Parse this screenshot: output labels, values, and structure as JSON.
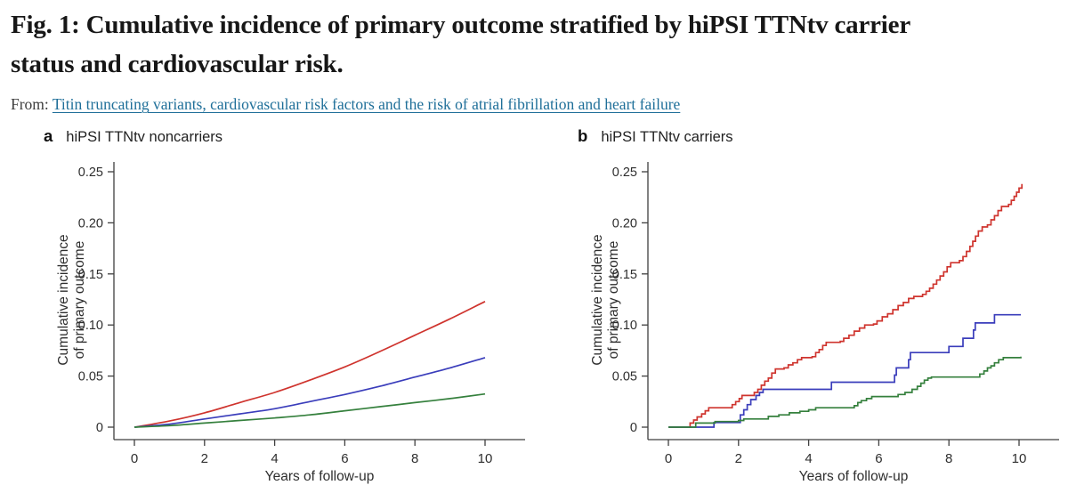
{
  "header": {
    "title_lines": [
      "Fig. 1: Cumulative incidence of primary outcome stratified by hiPSI TTNtv carrier",
      "status and cardiovascular risk."
    ],
    "from_label": "From:",
    "link_text": "Titin truncating variants, cardiovascular risk factors and the risk of atrial fibrillation and heart failure"
  },
  "colors": {
    "red": "#cf342e",
    "blue": "#3a3dbb",
    "green": "#35803d",
    "link": "#1f6f99",
    "axis": "#3f3f3f",
    "tick_text": "#2e2e2e"
  },
  "chart_data": [
    {
      "type": "line",
      "panel_label": "a",
      "title": "hiPSI TTNtv noncarriers",
      "xlabel": "Years of follow-up",
      "ylabel_lines": [
        "Cumulative incidence",
        "of primary outcome"
      ],
      "xlim": [
        0,
        10
      ],
      "ylim": [
        0,
        0.25
      ],
      "grid": false,
      "legend": "none",
      "xticks": {
        "values": [
          0,
          2,
          4,
          6,
          8,
          10
        ],
        "labels": [
          "0",
          "2",
          "4",
          "6",
          "8",
          "10"
        ]
      },
      "yticks": {
        "values": [
          0,
          0.05,
          0.1,
          0.15,
          0.2,
          0.25
        ],
        "labels": [
          "0",
          "0.05",
          "0.10",
          "0.15",
          "0.20",
          "0.25"
        ]
      },
      "series": [
        {
          "name": "red",
          "color": "#cf342e",
          "points": [
            [
              0,
              0
            ],
            [
              1,
              0.006
            ],
            [
              2,
              0.014
            ],
            [
              3,
              0.024
            ],
            [
              4,
              0.034
            ],
            [
              5,
              0.046
            ],
            [
              6,
              0.059
            ],
            [
              7,
              0.074
            ],
            [
              8,
              0.09
            ],
            [
              9,
              0.106
            ],
            [
              10,
              0.123
            ]
          ]
        },
        {
          "name": "blue",
          "color": "#3a3dbb",
          "points": [
            [
              0,
              0
            ],
            [
              1,
              0.003
            ],
            [
              2,
              0.008
            ],
            [
              3,
              0.013
            ],
            [
              4,
              0.018
            ],
            [
              5,
              0.025
            ],
            [
              6,
              0.032
            ],
            [
              7,
              0.04
            ],
            [
              8,
              0.049
            ],
            [
              9,
              0.058
            ],
            [
              10,
              0.068
            ]
          ]
        },
        {
          "name": "green",
          "color": "#35803d",
          "points": [
            [
              0,
              0
            ],
            [
              1,
              0.0015
            ],
            [
              2,
              0.004
            ],
            [
              3,
              0.0065
            ],
            [
              4,
              0.009
            ],
            [
              5,
              0.012
            ],
            [
              6,
              0.016
            ],
            [
              7,
              0.02
            ],
            [
              8,
              0.024
            ],
            [
              9,
              0.028
            ],
            [
              10,
              0.0325
            ]
          ]
        }
      ]
    },
    {
      "type": "step",
      "panel_label": "b",
      "title": "hiPSI TTNtv carriers",
      "xlabel": "Years of follow-up",
      "ylabel_lines": [
        "Cumulative incidence",
        "of primary outcome"
      ],
      "xlim": [
        0,
        10
      ],
      "ylim": [
        0,
        0.25
      ],
      "grid": false,
      "legend": "none",
      "xticks": {
        "values": [
          0,
          2,
          4,
          6,
          8,
          10
        ],
        "labels": [
          "0",
          "2",
          "4",
          "6",
          "8",
          "10"
        ]
      },
      "yticks": {
        "values": [
          0,
          0.05,
          0.1,
          0.15,
          0.2,
          0.25
        ],
        "labels": [
          "0",
          "0.05",
          "0.10",
          "0.15",
          "0.20",
          "0.25"
        ]
      },
      "series": [
        {
          "name": "red",
          "color": "#cf342e",
          "points": [
            [
              0,
              0
            ],
            [
              0.55,
              0
            ],
            [
              0.62,
              0.004
            ],
            [
              0.72,
              0.007
            ],
            [
              0.82,
              0.01
            ],
            [
              0.95,
              0.013
            ],
            [
              1.05,
              0.016
            ],
            [
              1.15,
              0.019
            ],
            [
              1.75,
              0.019
            ],
            [
              1.82,
              0.022
            ],
            [
              1.92,
              0.025
            ],
            [
              2.02,
              0.028
            ],
            [
              2.1,
              0.031
            ],
            [
              2.35,
              0.031
            ],
            [
              2.45,
              0.034
            ],
            [
              2.55,
              0.037
            ],
            [
              2.65,
              0.041
            ],
            [
              2.75,
              0.045
            ],
            [
              2.85,
              0.048
            ],
            [
              2.95,
              0.053
            ],
            [
              3.05,
              0.057
            ],
            [
              3.3,
              0.058
            ],
            [
              3.42,
              0.061
            ],
            [
              3.55,
              0.063
            ],
            [
              3.68,
              0.066
            ],
            [
              3.8,
              0.068
            ],
            [
              4.1,
              0.069
            ],
            [
              4.2,
              0.073
            ],
            [
              4.3,
              0.076
            ],
            [
              4.4,
              0.08
            ],
            [
              4.5,
              0.083
            ],
            [
              4.9,
              0.084
            ],
            [
              5.0,
              0.087
            ],
            [
              5.15,
              0.09
            ],
            [
              5.3,
              0.094
            ],
            [
              5.45,
              0.097
            ],
            [
              5.6,
              0.1
            ],
            [
              5.85,
              0.101
            ],
            [
              5.95,
              0.104
            ],
            [
              6.1,
              0.108
            ],
            [
              6.25,
              0.111
            ],
            [
              6.4,
              0.115
            ],
            [
              6.55,
              0.119
            ],
            [
              6.7,
              0.122
            ],
            [
              6.85,
              0.126
            ],
            [
              7.0,
              0.128
            ],
            [
              7.25,
              0.13
            ],
            [
              7.35,
              0.133
            ],
            [
              7.45,
              0.136
            ],
            [
              7.55,
              0.14
            ],
            [
              7.65,
              0.144
            ],
            [
              7.75,
              0.148
            ],
            [
              7.85,
              0.152
            ],
            [
              7.95,
              0.157
            ],
            [
              8.05,
              0.161
            ],
            [
              8.3,
              0.163
            ],
            [
              8.4,
              0.167
            ],
            [
              8.5,
              0.172
            ],
            [
              8.6,
              0.177
            ],
            [
              8.68,
              0.182
            ],
            [
              8.76,
              0.187
            ],
            [
              8.84,
              0.192
            ],
            [
              8.95,
              0.196
            ],
            [
              9.1,
              0.198
            ],
            [
              9.2,
              0.203
            ],
            [
              9.3,
              0.207
            ],
            [
              9.4,
              0.212
            ],
            [
              9.5,
              0.216
            ],
            [
              9.7,
              0.218
            ],
            [
              9.78,
              0.222
            ],
            [
              9.86,
              0.226
            ],
            [
              9.93,
              0.23
            ],
            [
              10.0,
              0.234
            ],
            [
              10.08,
              0.238
            ]
          ]
        },
        {
          "name": "blue",
          "color": "#3a3dbb",
          "points": [
            [
              0,
              0
            ],
            [
              1.25,
              0
            ],
            [
              1.3,
              0.0045
            ],
            [
              2.0,
              0.0045
            ],
            [
              2.05,
              0.012
            ],
            [
              2.15,
              0.017
            ],
            [
              2.25,
              0.022
            ],
            [
              2.35,
              0.027
            ],
            [
              2.5,
              0.031
            ],
            [
              2.6,
              0.034
            ],
            [
              2.7,
              0.037
            ],
            [
              4.6,
              0.037
            ],
            [
              4.65,
              0.044
            ],
            [
              6.4,
              0.044
            ],
            [
              6.45,
              0.051
            ],
            [
              6.5,
              0.058
            ],
            [
              6.8,
              0.058
            ],
            [
              6.85,
              0.066
            ],
            [
              6.9,
              0.073
            ],
            [
              7.95,
              0.073
            ],
            [
              8.0,
              0.079
            ],
            [
              8.35,
              0.079
            ],
            [
              8.4,
              0.087
            ],
            [
              8.65,
              0.087
            ],
            [
              8.7,
              0.095
            ],
            [
              8.75,
              0.102
            ],
            [
              9.25,
              0.102
            ],
            [
              9.3,
              0.11
            ],
            [
              10.05,
              0.11
            ]
          ]
        },
        {
          "name": "green",
          "color": "#35803d",
          "points": [
            [
              0,
              0
            ],
            [
              0.72,
              0
            ],
            [
              0.78,
              0.004
            ],
            [
              1.28,
              0.004
            ],
            [
              1.33,
              0.0055
            ],
            [
              1.95,
              0.0055
            ],
            [
              2.0,
              0.0065
            ],
            [
              2.15,
              0.008
            ],
            [
              2.8,
              0.008
            ],
            [
              2.85,
              0.0105
            ],
            [
              3.15,
              0.012
            ],
            [
              3.45,
              0.014
            ],
            [
              3.75,
              0.0155
            ],
            [
              4.0,
              0.017
            ],
            [
              4.2,
              0.019
            ],
            [
              5.2,
              0.019
            ],
            [
              5.3,
              0.021
            ],
            [
              5.4,
              0.024
            ],
            [
              5.5,
              0.026
            ],
            [
              5.65,
              0.028
            ],
            [
              5.8,
              0.03
            ],
            [
              6.45,
              0.03
            ],
            [
              6.55,
              0.032
            ],
            [
              6.75,
              0.034
            ],
            [
              6.95,
              0.037
            ],
            [
              7.1,
              0.04
            ],
            [
              7.2,
              0.043
            ],
            [
              7.3,
              0.046
            ],
            [
              7.4,
              0.048
            ],
            [
              7.5,
              0.049
            ],
            [
              8.8,
              0.049
            ],
            [
              8.88,
              0.052
            ],
            [
              9.0,
              0.055
            ],
            [
              9.1,
              0.058
            ],
            [
              9.2,
              0.06
            ],
            [
              9.3,
              0.063
            ],
            [
              9.42,
              0.066
            ],
            [
              9.55,
              0.068
            ],
            [
              10.05,
              0.069
            ]
          ]
        }
      ]
    }
  ]
}
